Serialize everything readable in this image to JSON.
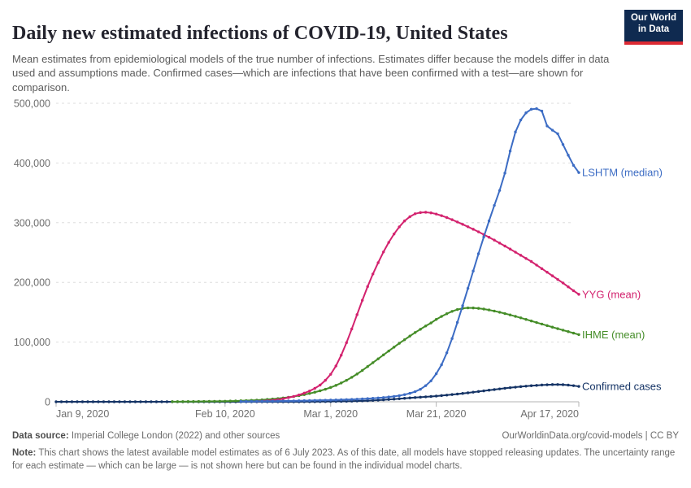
{
  "header": {
    "title": "Daily new estimated infections of COVID-19, United States",
    "subtitle": "Mean estimates from epidemiological models of the true number of infections. Estimates differ because the models differ in data used and assumptions made. Confirmed cases—which are infections that have been confirmed with a test—are shown for comparison.",
    "logo": {
      "line1": "Our World",
      "line2": "in Data",
      "bg_color": "#0f2a50",
      "accent_color": "#dc2a33"
    }
  },
  "chart_data": {
    "type": "line",
    "title": "Daily new estimated infections of COVID-19, United States",
    "x_unit": "days since Jan 9, 2020 (daily points)",
    "xlim_days": [
      0,
      99
    ],
    "ylim": [
      0,
      500000
    ],
    "grid": "horizontal dashed gridlines, solid bottom axis",
    "legend_position": "direct labels at right end of each line",
    "colors": {
      "grid": "#dedede",
      "axis": "#b3b3b3",
      "tick_label": "#6e6e6e"
    },
    "y_ticks": [
      {
        "value": 0,
        "label": "0"
      },
      {
        "value": 100000,
        "label": "100,000"
      },
      {
        "value": 200000,
        "label": "200,000"
      },
      {
        "value": 300000,
        "label": "300,000"
      },
      {
        "value": 400000,
        "label": "400,000"
      },
      {
        "value": 500000,
        "label": "500,000"
      }
    ],
    "x_ticks": [
      {
        "day": 0,
        "label": "Jan 9, 2020",
        "align": "start"
      },
      {
        "day": 32,
        "label": "Feb 10, 2020",
        "align": "middle"
      },
      {
        "day": 52,
        "label": "Mar 1, 2020",
        "align": "middle"
      },
      {
        "day": 72,
        "label": "Mar 21, 2020",
        "align": "middle"
      },
      {
        "day": 99,
        "label": "Apr 17, 2020",
        "align": "end"
      }
    ],
    "series": [
      {
        "name": "Confirmed cases",
        "color": "#143365",
        "start_day": 0,
        "values": [
          0,
          0,
          0,
          0,
          0,
          0,
          0,
          0,
          0,
          0,
          0,
          0,
          0,
          0,
          0,
          0,
          0,
          0,
          0,
          0,
          0,
          0,
          0,
          0,
          0,
          0,
          0,
          0,
          0,
          0,
          0,
          0,
          0,
          0,
          0,
          0,
          0,
          0,
          0,
          0,
          0,
          0,
          0,
          0,
          0,
          0,
          0,
          100,
          150,
          200,
          300,
          400,
          500,
          600,
          700,
          900,
          1100,
          1300,
          1600,
          1900,
          2300,
          2800,
          3300,
          3900,
          4500,
          5100,
          5800,
          6500,
          7100,
          7700,
          8300,
          8900,
          9600,
          10400,
          11200,
          12100,
          13000,
          14000,
          15000,
          16100,
          17200,
          18300,
          19400,
          20500,
          21600,
          22600,
          23600,
          24500,
          25400,
          26200,
          26900,
          27500,
          28100,
          28500,
          28800,
          28900,
          28600,
          28000,
          27000,
          25800
        ]
      },
      {
        "name": "IHME (mean)",
        "color": "#458d28",
        "start_day": 22,
        "values": [
          200,
          250,
          300,
          350,
          400,
          500,
          600,
          700,
          800,
          900,
          1000,
          1200,
          1400,
          1700,
          2000,
          2400,
          2800,
          3300,
          3900,
          4600,
          5400,
          6400,
          7500,
          8800,
          10300,
          12000,
          13900,
          16000,
          18400,
          21000,
          24000,
          27500,
          31500,
          36000,
          41000,
          46500,
          52500,
          59000,
          65500,
          72000,
          78500,
          85000,
          91500,
          98000,
          104000,
          110000,
          116000,
          121500,
          127000,
          132000,
          138000,
          143000,
          147500,
          151500,
          154500,
          156500,
          157300,
          157200,
          156500,
          155300,
          153800,
          152000,
          150000,
          147800,
          145500,
          143100,
          140600,
          138000,
          135400,
          132800,
          130200,
          127600,
          125000,
          122500,
          120000,
          117500,
          115000,
          112500
        ]
      },
      {
        "name": "YYG (mean)",
        "color": "#d3226e",
        "start_day": 38,
        "values": [
          800,
          1200,
          1800,
          2500,
          3500,
          5000,
          7000,
          9000,
          11500,
          14500,
          18000,
          22500,
          28000,
          36000,
          46000,
          60000,
          78000,
          99000,
          122000,
          146000,
          170000,
          193000,
          214000,
          233000,
          251000,
          267000,
          281000,
          293000,
          303000,
          310000,
          315000,
          317000,
          317500,
          316500,
          314500,
          311800,
          308600,
          305000,
          301200,
          297300,
          293200,
          289000,
          284700,
          280200,
          275600,
          270800,
          265900,
          260900,
          255800,
          250600,
          245400,
          240100,
          235000,
          229000,
          223000,
          217000,
          211000,
          205000,
          199000,
          192500,
          186000,
          180000
        ]
      },
      {
        "name": "LSHTM (median)",
        "color": "#3c6cc4",
        "start_day": 35,
        "values": [
          500,
          600,
          700,
          800,
          900,
          1000,
          1100,
          1200,
          1300,
          1400,
          1500,
          1700,
          1900,
          2100,
          2300,
          2500,
          2700,
          2900,
          3100,
          3400,
          3700,
          4000,
          4400,
          4800,
          5300,
          5800,
          6400,
          7100,
          8000,
          9000,
          10300,
          12000,
          14200,
          17000,
          21000,
          27000,
          35000,
          47000,
          62000,
          82000,
          106000,
          133000,
          161000,
          190000,
          219000,
          248000,
          276000,
          303000,
          329000,
          354000,
          383000,
          420000,
          452000,
          472000,
          484000,
          490000,
          491000,
          487000,
          462000,
          455000,
          449000,
          431000,
          413000,
          396000,
          384000
        ]
      }
    ]
  },
  "footer": {
    "datasource_label": "Data source:",
    "datasource_text": " Imperial College London (2022) and other sources",
    "attribution": "OurWorldinData.org/covid-models | CC BY",
    "note_label": "Note:",
    "note_text": " This chart shows the latest available model estimates as of 6 July 2023. As of this date, all models have stopped releasing updates. The uncertainty range for each estimate — which can be large — is not shown here but can be found in the individual model charts."
  }
}
